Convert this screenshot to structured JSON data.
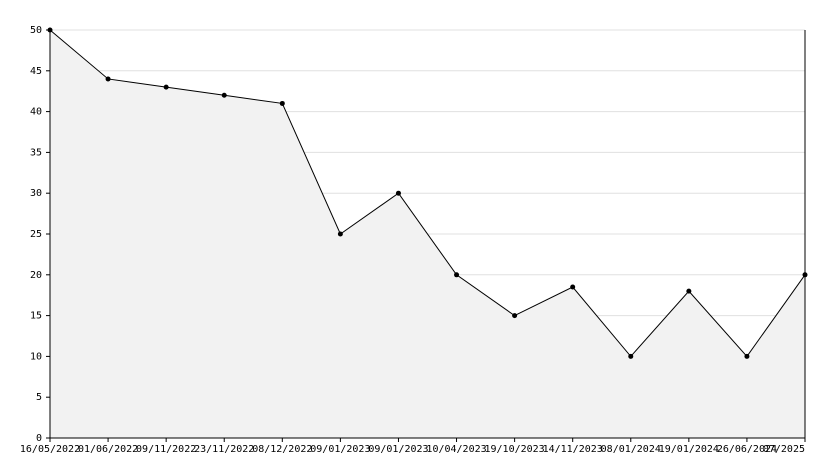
{
  "chart_data": {
    "type": "area",
    "categories": [
      "16/05/2022",
      "01/06/2022",
      "09/11/2022",
      "23/11/2022",
      "08/12/2022",
      "09/01/2023",
      "09/01/2023",
      "10/04/2023",
      "19/10/2023",
      "14/11/2023",
      "08/01/2024",
      "19/01/2024",
      "26/06/2024",
      "07/2025"
    ],
    "values": [
      50,
      44,
      43,
      42,
      41,
      25,
      30,
      20,
      15,
      18.5,
      10,
      18,
      10,
      20
    ],
    "color": "#000000",
    "area_color": "#f2f2f2",
    "ylim": [
      0,
      50
    ],
    "yticks": [
      0,
      5,
      10,
      15,
      20,
      25,
      30,
      35,
      40,
      45,
      50
    ],
    "grid": true
  }
}
